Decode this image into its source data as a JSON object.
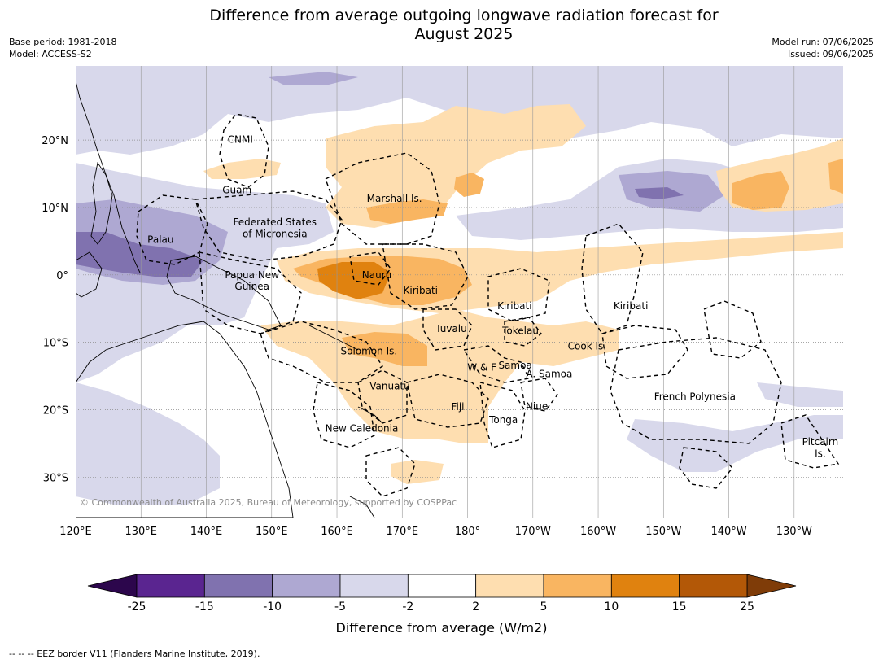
{
  "title": {
    "line1": "Difference from average outgoing longwave radiation forecast for",
    "line2": "August 2025"
  },
  "meta_left": {
    "base_period": "Base period: 1981-2018",
    "model": "Model: ACCESS-S2"
  },
  "meta_right": {
    "model_run": "Model run: 07/06/2025",
    "issued": "Issued: 09/06/2025"
  },
  "copyright": "© Commonwealth of Australia 2025, Bureau of Meteorology, supported by COSPPac",
  "map_extent": {
    "lon_min": 120,
    "lon_max": 237.5,
    "lat_min": -36,
    "lat_max": 31
  },
  "lat_ticks": [
    {
      "value": 20,
      "label": "20°N"
    },
    {
      "value": 10,
      "label": "10°N"
    },
    {
      "value": 0,
      "label": "0°"
    },
    {
      "value": -10,
      "label": "10°S"
    },
    {
      "value": -20,
      "label": "20°S"
    },
    {
      "value": -30,
      "label": "30°S"
    }
  ],
  "lon_ticks": [
    {
      "value": 120,
      "label": "120°E"
    },
    {
      "value": 130,
      "label": "130°E"
    },
    {
      "value": 140,
      "label": "140°E"
    },
    {
      "value": 150,
      "label": "150°E"
    },
    {
      "value": 160,
      "label": "160°E"
    },
    {
      "value": 170,
      "label": "170°E"
    },
    {
      "value": 180,
      "label": "180°"
    },
    {
      "value": 190,
      "label": "170°W"
    },
    {
      "value": 200,
      "label": "160°W"
    },
    {
      "value": 210,
      "label": "150°W"
    },
    {
      "value": 220,
      "label": "140°W"
    },
    {
      "value": 230,
      "label": "130°W"
    }
  ],
  "places": [
    {
      "name": "CNMI",
      "lon": 145.2,
      "lat": 20.1
    },
    {
      "name": "Guam",
      "lon": 144.7,
      "lat": 12.6
    },
    {
      "name": "Marshall Is.",
      "lon": 168.8,
      "lat": 11.3
    },
    {
      "name": "Federated States",
      "lon": 150.5,
      "lat": 7.8
    },
    {
      "name": "of Micronesia",
      "lon": 150.5,
      "lat": 6.1
    },
    {
      "name": "Palau",
      "lon": 133.0,
      "lat": 5.2
    },
    {
      "name": "Papua New",
      "lon": 147.0,
      "lat": 0.0
    },
    {
      "name": "Guinea",
      "lon": 147.0,
      "lat": -1.7
    },
    {
      "name": "Nauru",
      "lon": 166.1,
      "lat": 0.0
    },
    {
      "name": "Kiribati",
      "lon": 172.8,
      "lat": -2.3
    },
    {
      "name": "Kiribati",
      "lon": 187.2,
      "lat": -4.6
    },
    {
      "name": "Kiribati",
      "lon": 205.0,
      "lat": -4.6
    },
    {
      "name": "Tuvalu",
      "lon": 177.5,
      "lat": -8.0
    },
    {
      "name": "Tokelau",
      "lon": 188.1,
      "lat": -8.3
    },
    {
      "name": "Solomon Is.",
      "lon": 164.9,
      "lat": -11.3
    },
    {
      "name": "Cook Is.",
      "lon": 198.3,
      "lat": -10.6
    },
    {
      "name": "Samoa",
      "lon": 187.3,
      "lat": -13.4
    },
    {
      "name": "W & F",
      "lon": 182.2,
      "lat": -13.7
    },
    {
      "name": "A. Samoa",
      "lon": 192.5,
      "lat": -14.7
    },
    {
      "name": "Vanuatu",
      "lon": 168.1,
      "lat": -16.5
    },
    {
      "name": "Fiji",
      "lon": 178.5,
      "lat": -19.6
    },
    {
      "name": "Niue",
      "lon": 190.6,
      "lat": -19.5
    },
    {
      "name": "French Polynesia",
      "lon": 214.8,
      "lat": -18.1
    },
    {
      "name": "Tonga",
      "lon": 185.5,
      "lat": -21.5
    },
    {
      "name": "New Caledonia",
      "lon": 163.8,
      "lat": -22.8
    },
    {
      "name": "Pitcairn",
      "lon": 234.0,
      "lat": -24.8
    },
    {
      "name": "Is.",
      "lon": 234.0,
      "lat": -26.5
    }
  ],
  "colorbar": {
    "boundaries": [
      "-25",
      "-15",
      "-10",
      "-5",
      "-2",
      "2",
      "5",
      "10",
      "15",
      "25"
    ],
    "colors": [
      "#5a2590",
      "#8072af",
      "#aea8d2",
      "#d8d8eb",
      "#ffffff",
      "#fedeb0",
      "#f9b561",
      "#e0820f",
      "#b35807"
    ],
    "under_color": "#2c064c",
    "over_color": "#7f3c08",
    "label": "Difference from average (W/m2)"
  },
  "footer": "--  --  -- EEZ border V11 (Flanders Marine Institute, 2019)."
}
